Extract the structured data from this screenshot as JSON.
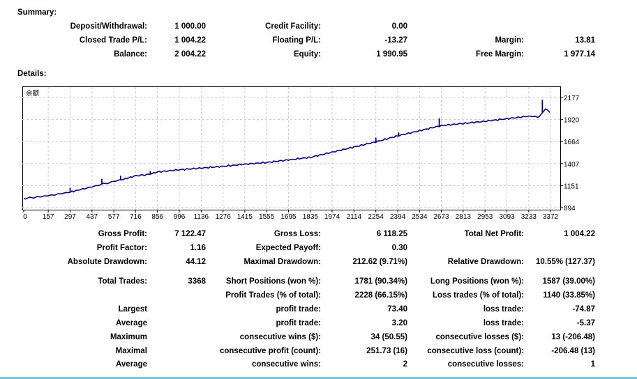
{
  "summary": {
    "heading": "Summary:",
    "deposit_label": "Deposit/Withdrawal:",
    "deposit_value": "1 000.00",
    "credit_label": "Credit Facility:",
    "credit_value": "0.00",
    "closed_label": "Closed Trade P/L:",
    "closed_value": "1 004.22",
    "floating_label": "Floating P/L:",
    "floating_value": "-13.27",
    "margin_label": "Margin:",
    "margin_value": "13.81",
    "balance_label": "Balance:",
    "balance_value": "2 004.22",
    "equity_label": "Equity:",
    "equity_value": "1 990.95",
    "free_margin_label": "Free Margin:",
    "free_margin_value": "1 977.14"
  },
  "details": {
    "heading": "Details:"
  },
  "chart_data": {
    "type": "line",
    "title": "余额",
    "x_ticks": [
      "0",
      "157",
      "297",
      "437",
      "577",
      "716",
      "856",
      "996",
      "1136",
      "1276",
      "1415",
      "1555",
      "1695",
      "1835",
      "1974",
      "2114",
      "2254",
      "2394",
      "2534",
      "2673",
      "2813",
      "2953",
      "3093",
      "3233",
      "3372"
    ],
    "y_ticks": [
      "2177",
      "1920",
      "1664",
      "1407",
      "1151",
      "894"
    ],
    "xlim": [
      0,
      3368
    ],
    "ylim": [
      894,
      2177
    ],
    "grid": true,
    "series": [
      {
        "color": "#000080",
        "x": [
          0,
          100,
          200,
          297,
          400,
          500,
          577,
          650,
          716,
          800,
          856,
          996,
          1136,
          1276,
          1415,
          1555,
          1695,
          1835,
          1974,
          2114,
          2254,
          2394,
          2534,
          2673,
          2813,
          2953,
          3093,
          3233,
          3300,
          3340,
          3368
        ],
        "y": [
          1000,
          1020,
          1045,
          1075,
          1120,
          1165,
          1200,
          1230,
          1265,
          1280,
          1310,
          1335,
          1355,
          1375,
          1400,
          1420,
          1450,
          1480,
          1540,
          1600,
          1660,
          1730,
          1790,
          1850,
          1875,
          1900,
          1930,
          1960,
          1950,
          2050,
          2004
        ]
      }
    ],
    "spikes": [
      {
        "x": 297,
        "y": 1125
      },
      {
        "x": 500,
        "y": 1230
      },
      {
        "x": 620,
        "y": 1265
      },
      {
        "x": 810,
        "y": 1320
      },
      {
        "x": 2254,
        "y": 1710
      },
      {
        "x": 2400,
        "y": 1770
      },
      {
        "x": 2660,
        "y": 1935
      },
      {
        "x": 3320,
        "y": 2150
      }
    ]
  },
  "stats": {
    "gross_profit_label": "Gross Profit:",
    "gross_profit_value": "7 122.47",
    "gross_loss_label": "Gross Loss:",
    "gross_loss_value": "6 118.25",
    "total_net_profit_label": "Total Net Profit:",
    "total_net_profit_value": "1 004.22",
    "profit_factor_label": "Profit Factor:",
    "profit_factor_value": "1.16",
    "expected_payoff_label": "Expected Payoff:",
    "expected_payoff_value": "0.30",
    "absolute_drawdown_label": "Absolute Drawdown:",
    "absolute_drawdown_value": "44.12",
    "maximal_drawdown_label": "Maximal Drawdown:",
    "maximal_drawdown_value": "212.62 (9.71%)",
    "relative_drawdown_label": "Relative Drawdown:",
    "relative_drawdown_value": "10.55% (127.37)",
    "total_trades_label": "Total Trades:",
    "total_trades_value": "3368",
    "short_positions_label": "Short Positions (won %):",
    "short_positions_value": "1781 (90.34%)",
    "long_positions_label": "Long Positions (won %):",
    "long_positions_value": "1587 (39.00%)",
    "profit_trades_label": "Profit Trades (% of total):",
    "profit_trades_value": "2228 (66.15%)",
    "loss_trades_label": "Loss trades (% of total):",
    "loss_trades_value": "1140 (33.85%)",
    "largest_label": "Largest",
    "largest_profit_label": "profit trade:",
    "largest_profit_value": "73.40",
    "largest_loss_label": "loss trade:",
    "largest_loss_value": "-74.87",
    "average_label": "Average",
    "average_profit_label": "profit trade:",
    "average_profit_value": "3.20",
    "average_loss_label": "loss trade:",
    "average_loss_value": "-5.37",
    "maximum_label": "Maximum",
    "max_cons_wins_label": "consecutive wins ($):",
    "max_cons_wins_value": "34 (50.55)",
    "max_cons_losses_label": "consecutive losses ($):",
    "max_cons_losses_value": "13 (-206.48)",
    "maximal_label": "Maximal",
    "maximal_cons_profit_label": "consecutive profit (count):",
    "maximal_cons_profit_value": "251.73 (16)",
    "maximal_cons_loss_label": "consecutive loss (count):",
    "maximal_cons_loss_value": "-206.48 (13)",
    "average2_label": "Average",
    "avg_cons_wins_label": "consecutive wins:",
    "avg_cons_wins_value": "2",
    "avg_cons_losses_label": "consecutive losses:",
    "avg_cons_losses_value": "1"
  }
}
